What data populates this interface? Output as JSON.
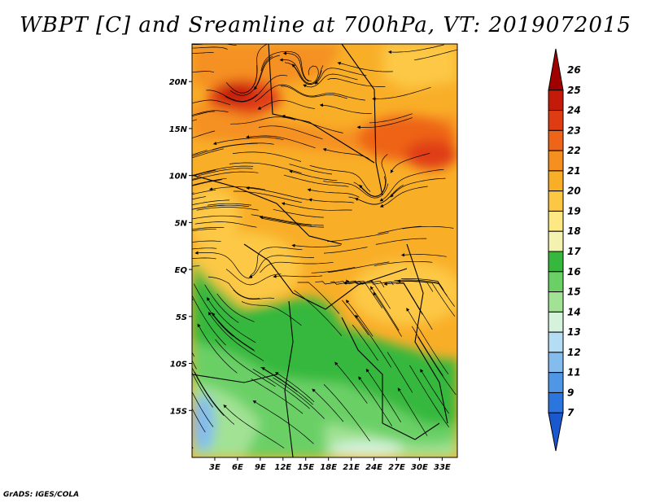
{
  "title": "WBPT [C] and Sreamline at 700hPa, VT: 2019072015",
  "credit": "GrADS: IGES/COLA",
  "map": {
    "lat_range": [
      -20,
      24
    ],
    "lon_range": [
      0,
      35
    ],
    "lat_ticks": [
      "20N",
      "15N",
      "10N",
      "5N",
      "EQ",
      "5S",
      "10S",
      "15S"
    ],
    "lat_tick_values": [
      20,
      15,
      10,
      5,
      0,
      -5,
      -10,
      -15
    ],
    "lon_ticks": [
      "3E",
      "6E",
      "9E",
      "12E",
      "15E",
      "18E",
      "21E",
      "24E",
      "27E",
      "30E",
      "33E"
    ],
    "lon_tick_values": [
      3,
      6,
      9,
      12,
      15,
      18,
      21,
      24,
      27,
      30,
      33
    ]
  },
  "colorbar": {
    "labels": [
      "26",
      "25",
      "24",
      "23",
      "22",
      "21",
      "20",
      "19",
      "18",
      "17",
      "16",
      "15",
      "14",
      "13",
      "12",
      "11",
      "9",
      "7"
    ],
    "colors": [
      "#a00000",
      "#c41a0a",
      "#e03c14",
      "#ee6418",
      "#f59020",
      "#f9ae28",
      "#fcc844",
      "#fde884",
      "#f4f2b0",
      "#36b83e",
      "#6ad066",
      "#a2e294",
      "#d4f2dc",
      "#b4dcf2",
      "#84bcee",
      "#5096e6",
      "#2a76de",
      "#1a58d0"
    ]
  }
}
